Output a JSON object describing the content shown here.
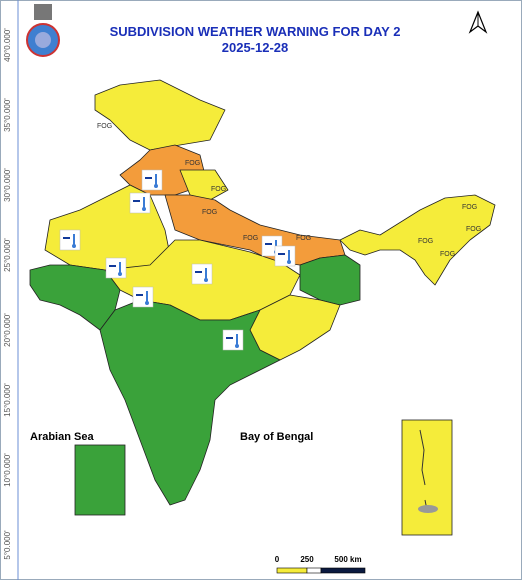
{
  "header": {
    "title": "SUBDIVISION WEATHER WARNING FOR DAY 2",
    "date": "2025-12-28"
  },
  "latitude_labels": [
    "40°0.000'",
    "35°0.000'",
    "30°0.000'",
    "25°0.000'",
    "20°0.000'",
    "15°0.000'",
    "10°0.000'",
    "5°0.000'"
  ],
  "fog_labels": [
    "FOG",
    "FOG",
    "FOG",
    "FOG",
    "FOG",
    "FOG",
    "FOG",
    "FOG",
    "FOG",
    "FOG"
  ],
  "sea_labels": {
    "arabian_sea": "Arabian Sea",
    "bay_of_bengal": "Bay of Bengal"
  },
  "scale": {
    "labels": [
      "0",
      "250",
      "500 km"
    ]
  }
}
